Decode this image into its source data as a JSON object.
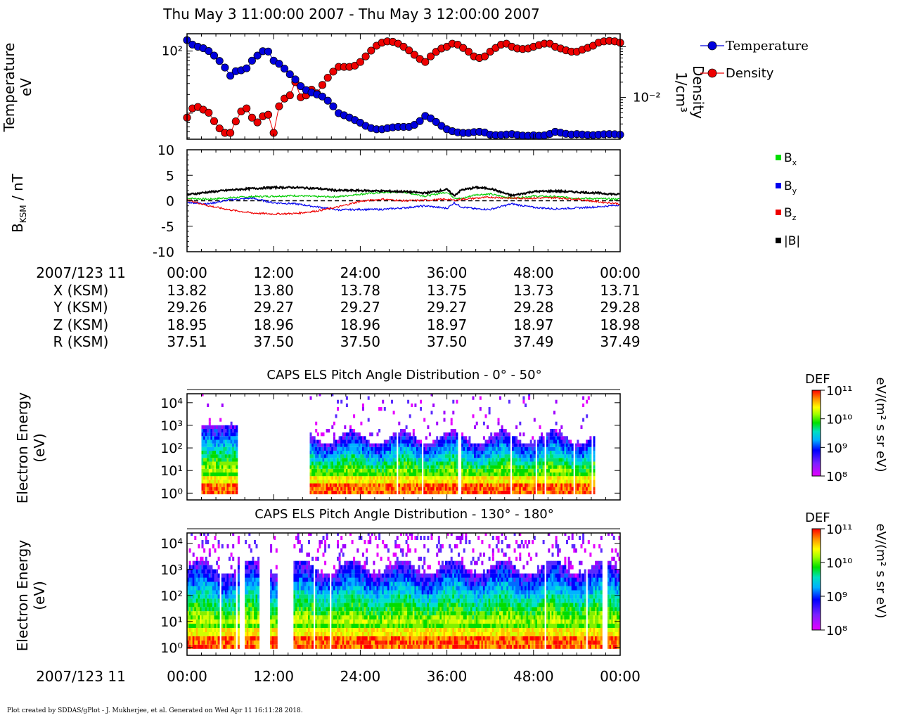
{
  "title": "Thu May 3 11:00:00 2007 - Thu May 3 12:00:00 2007",
  "panel1": {
    "ylabel_line1": "Temperature",
    "ylabel_line2": "eV",
    "right_label_line1": "Density",
    "right_label_line2": "1/cm³",
    "left_tick": "10²",
    "right_tick": "10⁻²",
    "legend": [
      {
        "label": "Temperature",
        "color": "#0000dd"
      },
      {
        "label": "Density",
        "color": "#ee0000"
      }
    ]
  },
  "panel2": {
    "ylabel": "B",
    "ylabel_sub": "KSM",
    "ylabel_tail": " / nT",
    "yticks": [
      "10",
      "5",
      "0",
      "-5",
      "-10"
    ],
    "legend": [
      {
        "label": "B",
        "sub": "x",
        "color": "#00dd00"
      },
      {
        "label": "B",
        "sub": "y",
        "color": "#0000ee"
      },
      {
        "label": "B",
        "sub": "z",
        "color": "#ee0000"
      },
      {
        "label": "|B|",
        "sub": "",
        "color": "#000000"
      }
    ]
  },
  "ephemeris": {
    "header": "2007/123 11",
    "times": [
      "00:00",
      "12:00",
      "24:00",
      "36:00",
      "48:00",
      "00:00"
    ],
    "rows": [
      {
        "label": "X (KSM)",
        "values": [
          "13.82",
          "13.80",
          "13.78",
          "13.75",
          "13.73",
          "13.71"
        ]
      },
      {
        "label": "Y (KSM)",
        "values": [
          "29.26",
          "29.27",
          "29.27",
          "29.27",
          "29.28",
          "29.28"
        ]
      },
      {
        "label": "Z (KSM)",
        "values": [
          "18.95",
          "18.96",
          "18.96",
          "18.97",
          "18.97",
          "18.98"
        ]
      },
      {
        "label": "R (KSM)",
        "values": [
          "37.51",
          "37.50",
          "37.50",
          "37.50",
          "37.49",
          "37.49"
        ]
      }
    ]
  },
  "spec1": {
    "title": "CAPS ELS Pitch Angle Distribution - 0° - 50°",
    "ylabel_line1": "Electron Energy",
    "ylabel_line2": "(eV)",
    "yticks": [
      "10⁴",
      "10³",
      "10²",
      "10¹",
      "10⁰"
    ]
  },
  "spec2": {
    "title": "CAPS ELS Pitch Angle Distribution - 130° - 180°",
    "ylabel_line1": "Electron Energy",
    "ylabel_line2": "(eV)",
    "yticks": [
      "10⁴",
      "10³",
      "10²",
      "10¹",
      "10⁰"
    ]
  },
  "colorbar": {
    "title": "DEF",
    "ticks": [
      "10¹¹",
      "10¹⁰",
      "10⁹",
      "10⁸"
    ],
    "units": "eV/(m² s sr eV)"
  },
  "bottom_axis": {
    "header": "2007/123 11",
    "times": [
      "00:00",
      "12:00",
      "24:00",
      "36:00",
      "48:00",
      "00:00"
    ]
  },
  "footer": "Plot created by SDDAS/gPlot - J. Mukherjee, et al.  Generated on Wed Apr 11 16:11:28 2018.",
  "chart_data": [
    {
      "type": "scatter",
      "x_unit": "minutes after 2007/123 11:00",
      "xlim": [
        0,
        60
      ],
      "yscale": "log",
      "legend_position": "right",
      "series": [
        {
          "name": "Temperature",
          "axis": "left",
          "color": "#0000dd",
          "x": [
            0,
            1,
            2,
            3,
            4,
            5,
            6,
            7,
            8,
            9,
            10,
            11,
            12,
            13,
            14,
            15,
            16,
            17,
            18,
            19,
            20,
            21,
            22,
            23,
            24,
            25,
            26,
            27,
            28,
            29,
            30,
            31,
            32,
            33,
            34,
            35,
            36,
            37,
            38,
            39,
            40,
            41,
            42,
            43,
            44,
            45,
            46,
            47,
            48,
            49,
            50,
            51,
            52,
            53,
            54,
            55,
            56,
            57,
            58,
            59,
            60
          ],
          "y": [
            150,
            120,
            115,
            100,
            80,
            60,
            40,
            50,
            48,
            70,
            90,
            110,
            70,
            60,
            45,
            35,
            25,
            22,
            20,
            18,
            14,
            10,
            9,
            8,
            7,
            6,
            5.5,
            5.5,
            5.8,
            6,
            6,
            6,
            7,
            9,
            8,
            6.5,
            5.5,
            5,
            4.8,
            4.8,
            5,
            5,
            4.5,
            4.4,
            4.5,
            4.6,
            4.4,
            4.3,
            4.4,
            4.3,
            4.5,
            5,
            4.8,
            4.5,
            4.6,
            4.5,
            4.4,
            4.5,
            4.6,
            4.6,
            4.5
          ]
        },
        {
          "name": "Density",
          "axis": "right",
          "color": "#ee0000",
          "x": [
            0,
            1,
            2,
            3,
            4,
            5,
            6,
            7,
            8,
            9,
            10,
            11,
            12,
            13,
            14,
            15,
            16,
            17,
            18,
            19,
            20,
            21,
            22,
            23,
            24,
            25,
            26,
            27,
            28,
            29,
            30,
            31,
            32,
            33,
            34,
            35,
            36,
            37,
            38,
            39,
            40,
            41,
            42,
            43,
            44,
            45,
            46,
            47,
            48,
            49,
            50,
            51,
            52,
            53,
            54,
            55,
            56,
            57,
            58,
            59,
            60
          ],
          "y": [
            0.004,
            0.007,
            0.006,
            0.005,
            0.003,
            0.002,
            0.002,
            0.004,
            0.007,
            0.004,
            0.003,
            0.006,
            0.002,
            0.01,
            0.009,
            0.02,
            0.008,
            0.015,
            0.012,
            0.02,
            0.03,
            0.04,
            0.04,
            0.04,
            0.05,
            0.07,
            0.1,
            0.12,
            0.13,
            0.12,
            0.1,
            0.08,
            0.06,
            0.05,
            0.07,
            0.09,
            0.1,
            0.12,
            0.1,
            0.08,
            0.06,
            0.06,
            0.08,
            0.1,
            0.12,
            0.1,
            0.09,
            0.09,
            0.1,
            0.11,
            0.12,
            0.1,
            0.09,
            0.08,
            0.08,
            0.09,
            0.1,
            0.12,
            0.13,
            0.13,
            0.12
          ]
        }
      ]
    },
    {
      "type": "line",
      "x_unit": "minutes after 2007/123 11:00",
      "xlim": [
        0,
        60
      ],
      "ylim": [
        -10,
        10
      ],
      "ylabel": "BKSM / nT",
      "zero_line": "dashed",
      "legend_position": "right",
      "series": [
        {
          "name": "Bx",
          "color": "#00cc00",
          "x": [
            0,
            3,
            6,
            9,
            12,
            15,
            18,
            21,
            24,
            27,
            30,
            33,
            36,
            37,
            38,
            40,
            42,
            45,
            48,
            51,
            54,
            57,
            60
          ],
          "y": [
            0.5,
            0.3,
            0.6,
            0.8,
            0.9,
            1.0,
            0.8,
            0.8,
            1.3,
            1.6,
            1.7,
            0.9,
            1.7,
            0.6,
            0.4,
            1.2,
            1.3,
            0.5,
            0.9,
            0.8,
            0.5,
            0.4,
            0.3
          ]
        },
        {
          "name": "By",
          "color": "#0000ee",
          "x": [
            0,
            3,
            6,
            9,
            12,
            15,
            18,
            21,
            24,
            27,
            30,
            33,
            36,
            37,
            38,
            40,
            42,
            45,
            48,
            51,
            54,
            57,
            60
          ],
          "y": [
            -0.3,
            -0.6,
            0.2,
            0.5,
            -0.4,
            -0.6,
            -1.2,
            -1.8,
            -1.7,
            -1.7,
            -1.4,
            -1.0,
            -1.5,
            -0.4,
            -1.2,
            -1.6,
            -1.7,
            -0.6,
            -1.3,
            -1.6,
            -1.4,
            -1.2,
            -0.8
          ]
        },
        {
          "name": "Bz",
          "color": "#ee0000",
          "x": [
            0,
            3,
            6,
            9,
            12,
            15,
            18,
            21,
            24,
            27,
            30,
            33,
            36,
            37,
            38,
            40,
            42,
            45,
            48,
            51,
            54,
            57,
            60
          ],
          "y": [
            0.2,
            -1.0,
            -1.8,
            -2.4,
            -2.6,
            -2.5,
            -2.0,
            -1.2,
            -0.1,
            0.3,
            0.0,
            0.1,
            0.3,
            0.1,
            0.3,
            0.5,
            0.7,
            0.5,
            0.5,
            0.6,
            0.3,
            -0.2,
            -0.6
          ]
        },
        {
          "name": "|B|",
          "color": "#000000",
          "x": [
            0,
            3,
            6,
            9,
            12,
            15,
            18,
            21,
            24,
            27,
            30,
            33,
            36,
            37,
            38,
            40,
            42,
            45,
            48,
            51,
            54,
            57,
            60
          ],
          "y": [
            1.2,
            1.7,
            2.1,
            2.4,
            2.6,
            2.6,
            2.4,
            2.0,
            2.0,
            1.9,
            1.8,
            1.5,
            2.2,
            1.0,
            2.1,
            2.6,
            2.4,
            1.0,
            1.8,
            1.9,
            1.7,
            1.5,
            1.2
          ]
        }
      ]
    },
    {
      "type": "heatmap",
      "title": "CAPS ELS Pitch Angle Distribution - 0° - 50°",
      "x_unit": "minutes after 2007/123 11:00",
      "xlim": [
        0,
        60
      ],
      "ylabel": "Electron Energy (eV)",
      "ylim": [
        0.5,
        25000
      ],
      "yscale": "log",
      "colorbar": {
        "label": "DEF",
        "units": "eV/(m² s sr eV)",
        "range": [
          100000000.0,
          100000000000.0
        ],
        "scale": "log"
      },
      "data_gaps_minutes": [
        [
          7,
          17
        ]
      ],
      "data_coverage_minutes": [
        [
          1.8,
          56.5
        ]
      ]
    },
    {
      "type": "heatmap",
      "title": "CAPS ELS Pitch Angle Distribution - 130° - 180°",
      "x_unit": "minutes after 2007/123 11:00",
      "xlim": [
        0,
        60
      ],
      "ylabel": "Electron Energy (eV)",
      "ylim": [
        0.5,
        25000
      ],
      "yscale": "log",
      "colorbar": {
        "label": "DEF",
        "units": "eV/(m² s sr eV)",
        "range": [
          100000000.0,
          100000000000.0
        ],
        "scale": "log"
      },
      "data_gaps_minutes": [
        [
          7.2,
          7.8
        ],
        [
          10,
          11.3
        ],
        [
          12.5,
          14.6
        ],
        [
          57.5,
          58.2
        ]
      ],
      "data_coverage_minutes": [
        [
          0,
          60
        ]
      ]
    }
  ]
}
